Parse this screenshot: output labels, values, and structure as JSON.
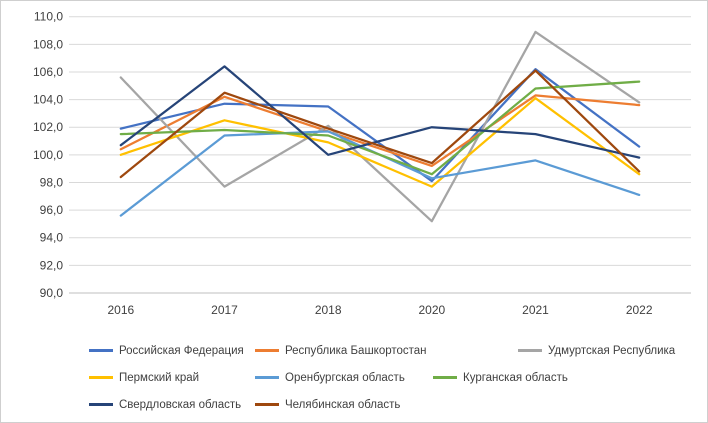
{
  "chart_data": {
    "type": "line",
    "title": "",
    "xlabel": "",
    "ylabel": "",
    "x_categories": [
      "2016",
      "2017",
      "2018",
      "2020",
      "2021",
      "2022"
    ],
    "ylim": [
      90,
      110
    ],
    "ystep": 2,
    "y_tick_labels": [
      "90,0",
      "92,0",
      "94,0",
      "96,0",
      "98,0",
      "100,0",
      "102,0",
      "104,0",
      "106,0",
      "108,0",
      "110,0"
    ],
    "grid": "horizontal-only",
    "legend_position": "bottom",
    "decimal_separator": ",",
    "series": [
      {
        "name": "Российская Федерация",
        "color": "#4472C4",
        "values": [
          101.9,
          103.7,
          103.5,
          98.1,
          106.2,
          100.6
        ]
      },
      {
        "name": "Республика Башкортостан",
        "color": "#ED7D31",
        "values": [
          100.4,
          104.2,
          101.7,
          99.2,
          104.3,
          103.6
        ]
      },
      {
        "name": "Удмуртская Республика",
        "color": "#A5A5A5",
        "values": [
          105.6,
          97.7,
          102.1,
          95.2,
          108.9,
          103.8
        ]
      },
      {
        "name": "Пермский край",
        "color": "#FFC000",
        "values": [
          100.0,
          102.5,
          100.9,
          97.7,
          104.1,
          98.6
        ]
      },
      {
        "name": "Оренбургская область",
        "color": "#5B9BD5",
        "values": [
          95.6,
          101.4,
          101.7,
          98.3,
          99.6,
          97.1
        ]
      },
      {
        "name": "Курганская область",
        "color": "#70AD47",
        "values": [
          101.5,
          101.8,
          101.4,
          98.6,
          104.8,
          105.3
        ]
      },
      {
        "name": "Свердловская область",
        "color": "#264478",
        "values": [
          100.7,
          106.4,
          100.0,
          102.0,
          101.5,
          99.8
        ]
      },
      {
        "name": "Челябинская область",
        "color": "#9E480E",
        "values": [
          98.4,
          104.5,
          101.9,
          99.4,
          106.1,
          98.8
        ]
      }
    ],
    "gridline_color": "#d9d9d9",
    "axis_line_color": "#bfbfbf",
    "legend_rows": [
      [
        0,
        1,
        2
      ],
      [
        3,
        4,
        5
      ],
      [
        6,
        7
      ]
    ]
  }
}
